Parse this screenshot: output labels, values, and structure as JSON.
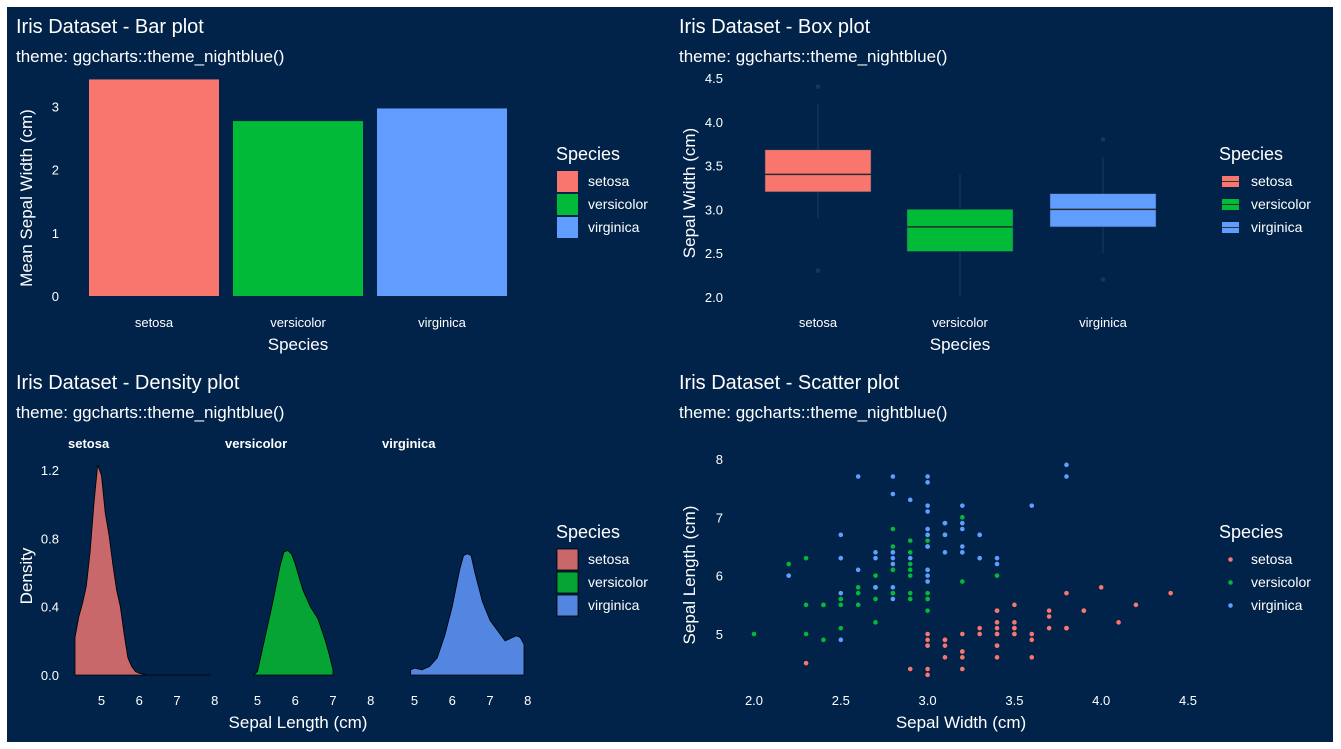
{
  "chart_data": [
    {
      "type": "bar",
      "title": "Iris Dataset - Bar plot",
      "subtitle": "theme: ggcharts::theme_nightblue()",
      "xlabel": "Species",
      "ylabel": "Mean Sepal Width (cm)",
      "categories": [
        "setosa",
        "versicolor",
        "virginica"
      ],
      "values": [
        3.43,
        2.77,
        2.97
      ],
      "colors": [
        "#F8766D",
        "#00BA38",
        "#619CFF"
      ],
      "ylim": [
        0,
        3.5
      ],
      "yticks": [
        0,
        1,
        2,
        3
      ],
      "grid": false,
      "legend": {
        "title": "Species",
        "position": "right",
        "items": [
          "setosa",
          "versicolor",
          "virginica"
        ]
      }
    },
    {
      "type": "box",
      "title": "Iris Dataset - Box plot",
      "subtitle": "theme: ggcharts::theme_nightblue()",
      "xlabel": "Species",
      "ylabel": "Sepal Width (cm)",
      "categories": [
        "setosa",
        "versicolor",
        "virginica"
      ],
      "colors": [
        "#F8766D",
        "#00BA38",
        "#619CFF"
      ],
      "boxes": [
        {
          "min": 2.9,
          "q1": 3.2,
          "median": 3.4,
          "q3": 3.68,
          "max": 4.2,
          "outliers": [
            2.3,
            4.4
          ]
        },
        {
          "min": 2.0,
          "q1": 2.52,
          "median": 2.8,
          "q3": 3.0,
          "max": 3.4,
          "outliers": []
        },
        {
          "min": 2.5,
          "q1": 2.8,
          "median": 3.0,
          "q3": 3.18,
          "max": 3.6,
          "outliers": [
            2.2,
            3.8
          ]
        }
      ],
      "ylim": [
        1.9,
        4.55
      ],
      "yticks": [
        "2.0",
        "2.5",
        "3.0",
        "3.5",
        "4.0",
        "4.5"
      ],
      "grid": false,
      "legend": {
        "title": "Species",
        "position": "right",
        "items": [
          "setosa",
          "versicolor",
          "virginica"
        ]
      }
    },
    {
      "type": "area",
      "title": "Iris Dataset - Density plot",
      "subtitle": "theme: ggcharts::theme_nightblue()",
      "xlabel": "Sepal Length (cm)",
      "ylabel": "Density",
      "xlim": [
        4.3,
        7.9
      ],
      "xticks": [
        5,
        6,
        7,
        8
      ],
      "ylim": [
        0,
        1.3
      ],
      "yticks": [
        "0.0",
        "0.4",
        "0.8",
        "1.2"
      ],
      "facets": [
        {
          "name": "setosa",
          "color": "#C8686A",
          "x": [
            4.3,
            4.4,
            4.5,
            4.6,
            4.7,
            4.8,
            4.9,
            5.0,
            5.1,
            5.2,
            5.3,
            5.4,
            5.5,
            5.6,
            5.7,
            5.8,
            5.9,
            6.0,
            6.2,
            7.0,
            7.9
          ],
          "y": [
            0.22,
            0.34,
            0.42,
            0.52,
            0.72,
            1.0,
            1.23,
            1.17,
            0.95,
            0.82,
            0.65,
            0.5,
            0.4,
            0.24,
            0.1,
            0.05,
            0.02,
            0.01,
            0,
            0,
            0
          ]
        },
        {
          "name": "versicolor",
          "color": "#05A435",
          "x": [
            4.9,
            5.0,
            5.2,
            5.4,
            5.6,
            5.7,
            5.8,
            5.9,
            6.0,
            6.2,
            6.4,
            6.6,
            6.8,
            6.9,
            7.0
          ],
          "y": [
            0,
            0.02,
            0.22,
            0.42,
            0.64,
            0.72,
            0.73,
            0.71,
            0.65,
            0.5,
            0.4,
            0.33,
            0.2,
            0.12,
            0.03
          ]
        },
        {
          "name": "virginica",
          "color": "#5286E0",
          "x": [
            4.9,
            5.0,
            5.2,
            5.4,
            5.6,
            5.8,
            6.0,
            6.2,
            6.3,
            6.4,
            6.5,
            6.6,
            6.8,
            7.0,
            7.2,
            7.4,
            7.6,
            7.7,
            7.8,
            7.9
          ],
          "y": [
            0.03,
            0.04,
            0.03,
            0.05,
            0.1,
            0.23,
            0.4,
            0.62,
            0.7,
            0.71,
            0.7,
            0.6,
            0.43,
            0.32,
            0.26,
            0.2,
            0.22,
            0.23,
            0.22,
            0.18
          ]
        }
      ],
      "grid": false,
      "legend": {
        "title": "Species",
        "position": "right",
        "items": [
          "setosa",
          "versicolor",
          "virginica"
        ]
      }
    },
    {
      "type": "scatter",
      "title": "Iris Dataset - Scatter plot",
      "subtitle": "theme: ggcharts::theme_nightblue()",
      "xlabel": "Sepal Width (cm)",
      "ylabel": "Sepal Length (cm)",
      "xlim": [
        1.88,
        4.52
      ],
      "ylim": [
        4.18,
        8.02
      ],
      "xticks": [
        "2.0",
        "2.5",
        "3.0",
        "3.5",
        "4.0",
        "4.5"
      ],
      "yticks": [
        5,
        6,
        7,
        8
      ],
      "grid": false,
      "series": [
        {
          "name": "setosa",
          "color": "#F8766D",
          "points": [
            [
              3.5,
              5.1
            ],
            [
              3.0,
              4.9
            ],
            [
              3.2,
              4.7
            ],
            [
              3.1,
              4.6
            ],
            [
              3.6,
              5.0
            ],
            [
              3.9,
              5.4
            ],
            [
              3.4,
              4.6
            ],
            [
              3.4,
              5.0
            ],
            [
              2.9,
              4.4
            ],
            [
              3.1,
              4.9
            ],
            [
              3.7,
              5.4
            ],
            [
              3.4,
              4.8
            ],
            [
              3.0,
              4.8
            ],
            [
              3.0,
              4.3
            ],
            [
              4.0,
              5.8
            ],
            [
              4.4,
              5.7
            ],
            [
              3.9,
              5.4
            ],
            [
              3.5,
              5.1
            ],
            [
              3.8,
              5.7
            ],
            [
              3.8,
              5.1
            ],
            [
              3.4,
              5.4
            ],
            [
              3.7,
              5.1
            ],
            [
              3.6,
              4.6
            ],
            [
              3.3,
              5.1
            ],
            [
              3.4,
              4.8
            ],
            [
              3.0,
              5.0
            ],
            [
              3.4,
              5.0
            ],
            [
              3.5,
              5.2
            ],
            [
              3.4,
              5.2
            ],
            [
              3.2,
              4.7
            ],
            [
              3.1,
              4.8
            ],
            [
              3.4,
              5.4
            ],
            [
              4.1,
              5.2
            ],
            [
              4.2,
              5.5
            ],
            [
              3.1,
              4.9
            ],
            [
              3.2,
              5.0
            ],
            [
              3.5,
              5.5
            ],
            [
              3.6,
              4.9
            ],
            [
              3.0,
              4.4
            ],
            [
              3.4,
              5.1
            ],
            [
              3.5,
              5.0
            ],
            [
              2.3,
              4.5
            ],
            [
              3.2,
              4.4
            ],
            [
              3.5,
              5.0
            ],
            [
              3.8,
              5.1
            ],
            [
              3.0,
              4.8
            ],
            [
              3.8,
              5.1
            ],
            [
              3.2,
              4.6
            ],
            [
              3.7,
              5.3
            ],
            [
              3.3,
              5.0
            ]
          ]
        },
        {
          "name": "versicolor",
          "color": "#00BA38",
          "points": [
            [
              3.2,
              7.0
            ],
            [
              3.2,
              6.4
            ],
            [
              3.1,
              6.9
            ],
            [
              2.3,
              5.5
            ],
            [
              2.8,
              6.5
            ],
            [
              2.8,
              5.7
            ],
            [
              3.3,
              6.3
            ],
            [
              2.4,
              4.9
            ],
            [
              2.9,
              6.6
            ],
            [
              2.7,
              5.2
            ],
            [
              2.0,
              5.0
            ],
            [
              3.0,
              5.9
            ],
            [
              2.2,
              6.0
            ],
            [
              2.9,
              6.1
            ],
            [
              2.9,
              5.6
            ],
            [
              3.1,
              6.7
            ],
            [
              3.0,
              5.6
            ],
            [
              2.7,
              5.8
            ],
            [
              2.2,
              6.2
            ],
            [
              2.5,
              5.6
            ],
            [
              3.2,
              5.9
            ],
            [
              2.8,
              6.1
            ],
            [
              2.5,
              6.3
            ],
            [
              2.8,
              6.1
            ],
            [
              2.9,
              6.4
            ],
            [
              3.0,
              6.6
            ],
            [
              2.8,
              6.8
            ],
            [
              3.0,
              6.7
            ],
            [
              2.9,
              6.0
            ],
            [
              2.6,
              5.7
            ],
            [
              2.4,
              5.5
            ],
            [
              2.4,
              5.5
            ],
            [
              2.7,
              5.8
            ],
            [
              2.7,
              6.0
            ],
            [
              3.0,
              5.4
            ],
            [
              3.4,
              6.0
            ],
            [
              3.1,
              6.7
            ],
            [
              2.3,
              6.3
            ],
            [
              3.0,
              5.6
            ],
            [
              2.5,
              5.5
            ],
            [
              2.6,
              5.5
            ],
            [
              3.0,
              6.1
            ],
            [
              2.6,
              5.8
            ],
            [
              2.3,
              5.0
            ],
            [
              2.7,
              5.6
            ],
            [
              3.0,
              5.7
            ],
            [
              2.9,
              5.7
            ],
            [
              2.9,
              6.2
            ],
            [
              2.5,
              5.1
            ],
            [
              2.8,
              5.7
            ]
          ]
        },
        {
          "name": "virginica",
          "color": "#619CFF",
          "points": [
            [
              3.3,
              6.3
            ],
            [
              2.7,
              5.8
            ],
            [
              3.0,
              7.1
            ],
            [
              2.9,
              6.3
            ],
            [
              3.0,
              6.5
            ],
            [
              3.0,
              7.6
            ],
            [
              2.5,
              4.9
            ],
            [
              2.9,
              7.3
            ],
            [
              2.5,
              6.7
            ],
            [
              3.6,
              7.2
            ],
            [
              3.2,
              6.5
            ],
            [
              2.7,
              6.4
            ],
            [
              3.0,
              6.8
            ],
            [
              2.5,
              5.7
            ],
            [
              2.8,
              5.8
            ],
            [
              3.2,
              6.4
            ],
            [
              3.0,
              6.5
            ],
            [
              3.8,
              7.7
            ],
            [
              2.6,
              7.7
            ],
            [
              2.2,
              6.0
            ],
            [
              3.2,
              6.9
            ],
            [
              2.8,
              5.6
            ],
            [
              2.8,
              7.7
            ],
            [
              2.7,
              6.3
            ],
            [
              3.3,
              6.7
            ],
            [
              3.2,
              7.2
            ],
            [
              2.8,
              6.2
            ],
            [
              3.0,
              6.1
            ],
            [
              2.8,
              6.4
            ],
            [
              3.0,
              7.2
            ],
            [
              2.8,
              7.4
            ],
            [
              3.8,
              7.9
            ],
            [
              2.8,
              6.4
            ],
            [
              2.8,
              6.3
            ],
            [
              2.6,
              6.1
            ],
            [
              3.0,
              7.7
            ],
            [
              3.4,
              6.3
            ],
            [
              3.1,
              6.4
            ],
            [
              3.0,
              6.0
            ],
            [
              3.1,
              6.9
            ],
            [
              3.1,
              6.7
            ],
            [
              3.1,
              6.9
            ],
            [
              2.7,
              5.8
            ],
            [
              3.2,
              6.8
            ],
            [
              3.3,
              6.7
            ],
            [
              3.0,
              6.7
            ],
            [
              2.5,
              6.3
            ],
            [
              3.0,
              6.5
            ],
            [
              3.4,
              6.2
            ],
            [
              3.0,
              5.9
            ]
          ]
        }
      ],
      "legend": {
        "title": "Species",
        "position": "right",
        "items": [
          "setosa",
          "versicolor",
          "virginica"
        ]
      }
    }
  ]
}
